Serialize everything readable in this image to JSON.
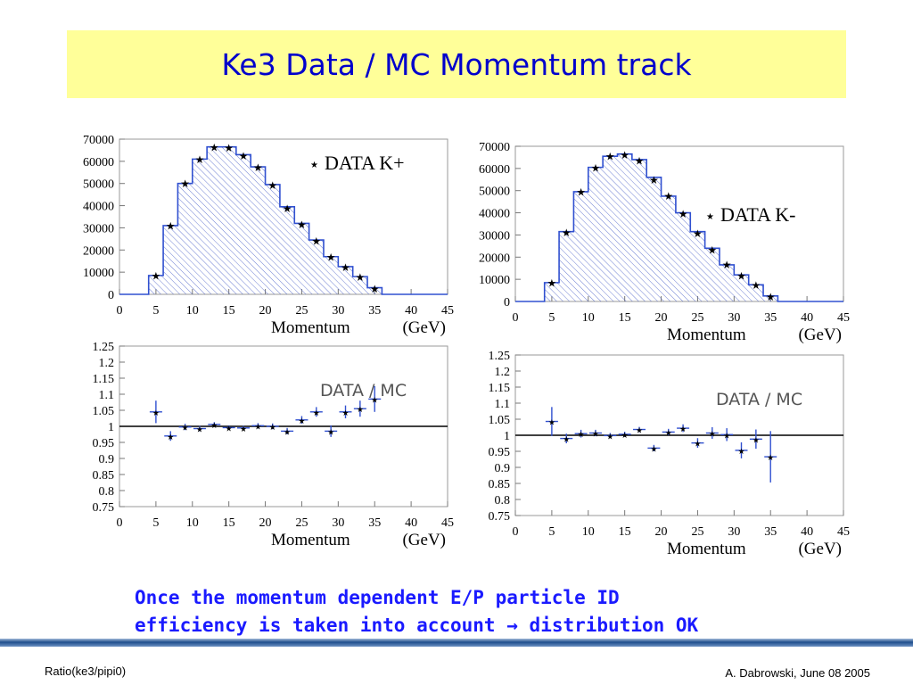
{
  "slide": {
    "title": "Ke3 Data / MC Momentum track",
    "note_line1": "Once the momentum dependent E/P particle ID",
    "note_line2_pre": "efficiency is taken into account",
    "note_arrow": "→",
    "note_line2_post": "distribution OK",
    "footer_left": "Ratio(ke3/pipi0)",
    "footer_right": "A. Dabrowski, June 08 2005"
  },
  "colors": {
    "title_bg": "#ffff99",
    "title_text": "#0000cc",
    "note_text": "#1a1aff",
    "mc_line": "#3050d0",
    "ratio_line": "#000000"
  },
  "chart_data": [
    {
      "id": "kplus-hist",
      "type": "bar",
      "legend": "DATA K+",
      "xlabel": "Momentum",
      "xunit": "(GeV)",
      "xlim": [
        0,
        45
      ],
      "ylim": [
        0,
        70000
      ],
      "x_ticks": [
        "0",
        "5",
        "10",
        "15",
        "20",
        "25",
        "30",
        "35",
        "40",
        "45"
      ],
      "y_ticks": [
        "0",
        "10000",
        "20000",
        "30000",
        "40000",
        "50000",
        "60000",
        "70000"
      ],
      "bin_edges": [
        4,
        6,
        8,
        10,
        12,
        14,
        16,
        18,
        20,
        22,
        24,
        26,
        28,
        30,
        32,
        34,
        36
      ],
      "mc_values": [
        8500,
        31000,
        50000,
        61000,
        66500,
        66500,
        63000,
        57500,
        49500,
        39500,
        32000,
        24500,
        17000,
        12500,
        8000,
        3000
      ],
      "data_values": [
        8700,
        31200,
        50200,
        61200,
        66600,
        66300,
        62700,
        57600,
        49400,
        39100,
        31800,
        24300,
        17000,
        12400,
        8100,
        2900
      ]
    },
    {
      "id": "kminus-hist",
      "type": "bar",
      "legend": "DATA K-",
      "xlabel": "Momentum",
      "xunit": "(GeV)",
      "xlim": [
        0,
        45
      ],
      "ylim": [
        0,
        70000
      ],
      "x_ticks": [
        "0",
        "5",
        "10",
        "15",
        "20",
        "25",
        "30",
        "35",
        "40",
        "45"
      ],
      "y_ticks": [
        "0",
        "10000",
        "20000",
        "30000",
        "40000",
        "50000",
        "60000",
        "70000"
      ],
      "bin_edges": [
        4,
        6,
        8,
        10,
        12,
        14,
        16,
        18,
        20,
        22,
        24,
        26,
        28,
        30,
        32,
        34,
        36
      ],
      "mc_values": [
        8500,
        31500,
        49500,
        60500,
        65500,
        66500,
        64000,
        56000,
        47500,
        40000,
        31500,
        24000,
        16500,
        12000,
        7500,
        2500
      ],
      "data_values": [
        8600,
        31300,
        49600,
        60600,
        65700,
        66400,
        63800,
        55200,
        47800,
        39900,
        30900,
        23500,
        16800,
        11900,
        7600,
        2400
      ]
    },
    {
      "id": "kplus-ratio",
      "type": "scatter",
      "legend": "DATA / MC",
      "xlabel": "Momentum",
      "xunit": "(GeV)",
      "xlim": [
        0,
        45
      ],
      "ylim": [
        0.75,
        1.25
      ],
      "reference_y": 1.0,
      "x_ticks": [
        "0",
        "5",
        "10",
        "15",
        "20",
        "25",
        "30",
        "35",
        "40",
        "45"
      ],
      "y_ticks": [
        "0.75",
        "0.8",
        "0.85",
        "0.9",
        "0.95",
        "1",
        "1.05",
        "1.1",
        "1.15",
        "1.2",
        "1.25"
      ],
      "points": [
        {
          "x": 5,
          "y": 1.045,
          "err": 0.035
        },
        {
          "x": 7,
          "y": 0.97,
          "err": 0.015
        },
        {
          "x": 9,
          "y": 0.998,
          "err": 0.01
        },
        {
          "x": 11,
          "y": 0.993,
          "err": 0.008
        },
        {
          "x": 13,
          "y": 1.006,
          "err": 0.007
        },
        {
          "x": 15,
          "y": 0.996,
          "err": 0.007
        },
        {
          "x": 17,
          "y": 0.995,
          "err": 0.007
        },
        {
          "x": 19,
          "y": 1.002,
          "err": 0.008
        },
        {
          "x": 21,
          "y": 1.0,
          "err": 0.009
        },
        {
          "x": 23,
          "y": 0.985,
          "err": 0.01
        },
        {
          "x": 25,
          "y": 1.02,
          "err": 0.012
        },
        {
          "x": 27,
          "y": 1.045,
          "err": 0.015
        },
        {
          "x": 29,
          "y": 0.985,
          "err": 0.018
        },
        {
          "x": 31,
          "y": 1.045,
          "err": 0.02
        },
        {
          "x": 33,
          "y": 1.055,
          "err": 0.025
        },
        {
          "x": 35,
          "y": 1.085,
          "err": 0.04
        }
      ]
    },
    {
      "id": "kminus-ratio",
      "type": "scatter",
      "legend": "DATA / MC",
      "xlabel": "Momentum",
      "xunit": "(GeV)",
      "xlim": [
        0,
        45
      ],
      "ylim": [
        0.75,
        1.25
      ],
      "reference_y": 1.0,
      "x_ticks": [
        "0",
        "5",
        "10",
        "15",
        "20",
        "25",
        "30",
        "35",
        "40",
        "45"
      ],
      "y_ticks": [
        "0.75",
        "0.8",
        "0.85",
        "0.9",
        "0.95",
        "1",
        "1.05",
        "1.1",
        "1.15",
        "1.2",
        "1.25"
      ],
      "points": [
        {
          "x": 5,
          "y": 1.043,
          "err": 0.045
        },
        {
          "x": 7,
          "y": 0.99,
          "err": 0.015
        },
        {
          "x": 9,
          "y": 1.005,
          "err": 0.012
        },
        {
          "x": 11,
          "y": 1.007,
          "err": 0.01
        },
        {
          "x": 13,
          "y": 0.999,
          "err": 0.008
        },
        {
          "x": 15,
          "y": 1.003,
          "err": 0.008
        },
        {
          "x": 17,
          "y": 1.018,
          "err": 0.008
        },
        {
          "x": 19,
          "y": 0.96,
          "err": 0.01
        },
        {
          "x": 21,
          "y": 1.01,
          "err": 0.01
        },
        {
          "x": 23,
          "y": 1.022,
          "err": 0.012
        },
        {
          "x": 25,
          "y": 0.976,
          "err": 0.015
        },
        {
          "x": 27,
          "y": 1.007,
          "err": 0.018
        },
        {
          "x": 29,
          "y": 1.002,
          "err": 0.02
        },
        {
          "x": 31,
          "y": 0.953,
          "err": 0.025
        },
        {
          "x": 33,
          "y": 0.988,
          "err": 0.03
        },
        {
          "x": 35,
          "y": 0.933,
          "err": 0.08
        }
      ]
    }
  ]
}
